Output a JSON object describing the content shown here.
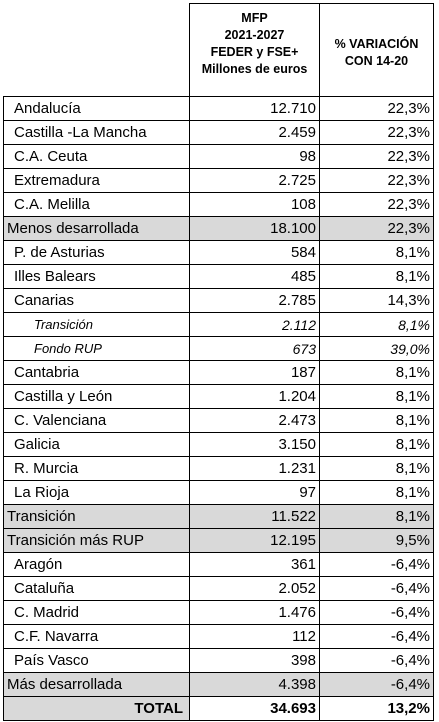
{
  "header": {
    "col2_lines": [
      "MFP",
      "2021-2027",
      "FEDER y FSE+",
      "Millones de euros"
    ],
    "col3_lines": [
      "% VARIACIÓN",
      "CON 14-20"
    ]
  },
  "rows": [
    {
      "name": "Andalucía",
      "value": "12.710",
      "pct": "22,3%",
      "kind": "region"
    },
    {
      "name": "Castilla -La Mancha",
      "value": "2.459",
      "pct": "22,3%",
      "kind": "region"
    },
    {
      "name": "C.A. Ceuta",
      "value": "98",
      "pct": "22,3%",
      "kind": "region"
    },
    {
      "name": "Extremadura",
      "value": "2.725",
      "pct": "22,3%",
      "kind": "region"
    },
    {
      "name": "C.A. Melilla",
      "value": "108",
      "pct": "22,3%",
      "kind": "region"
    },
    {
      "name": "Menos desarrollada",
      "value": "18.100",
      "pct": "22,3%",
      "kind": "group"
    },
    {
      "name": "P. de Asturias",
      "value": "584",
      "pct": "8,1%",
      "kind": "region"
    },
    {
      "name": "Illes Balears",
      "value": "485",
      "pct": "8,1%",
      "kind": "region"
    },
    {
      "name": "Canarias",
      "value": "2.785",
      "pct": "14,3%",
      "kind": "region"
    },
    {
      "name": "Transición",
      "value": "2.112",
      "pct": "8,1%",
      "kind": "sub",
      "dotted": true
    },
    {
      "name": "Fondo RUP",
      "value": "673",
      "pct": "39,0%",
      "kind": "sub",
      "dotted": true
    },
    {
      "name": "Cantabria",
      "value": "187",
      "pct": "8,1%",
      "kind": "region",
      "dotted": true
    },
    {
      "name": "Castilla y León",
      "value": "1.204",
      "pct": "8,1%",
      "kind": "region"
    },
    {
      "name": "C. Valenciana",
      "value": "2.473",
      "pct": "8,1%",
      "kind": "region"
    },
    {
      "name": "Galicia",
      "value": "3.150",
      "pct": "8,1%",
      "kind": "region"
    },
    {
      "name": "R. Murcia",
      "value": "1.231",
      "pct": "8,1%",
      "kind": "region"
    },
    {
      "name": "La Rioja",
      "value": "97",
      "pct": "8,1%",
      "kind": "region"
    },
    {
      "name": "Transición",
      "value": "11.522",
      "pct": "8,1%",
      "kind": "group"
    },
    {
      "name": "Transición más RUP",
      "value": "12.195",
      "pct": "9,5%",
      "kind": "group"
    },
    {
      "name": "Aragón",
      "value": "361",
      "pct": "-6,4%",
      "kind": "region"
    },
    {
      "name": "Cataluña",
      "value": "2.052",
      "pct": "-6,4%",
      "kind": "region"
    },
    {
      "name": "C. Madrid",
      "value": "1.476",
      "pct": "-6,4%",
      "kind": "region"
    },
    {
      "name": "C.F. Navarra",
      "value": "112",
      "pct": "-6,4%",
      "kind": "region"
    },
    {
      "name": "País Vasco",
      "value": "398",
      "pct": "-6,4%",
      "kind": "region"
    },
    {
      "name": "Más desarrollada",
      "value": "4.398",
      "pct": "-6,4%",
      "kind": "group"
    }
  ],
  "total": {
    "label": "TOTAL",
    "value": "34.693",
    "pct": "13,2%"
  }
}
